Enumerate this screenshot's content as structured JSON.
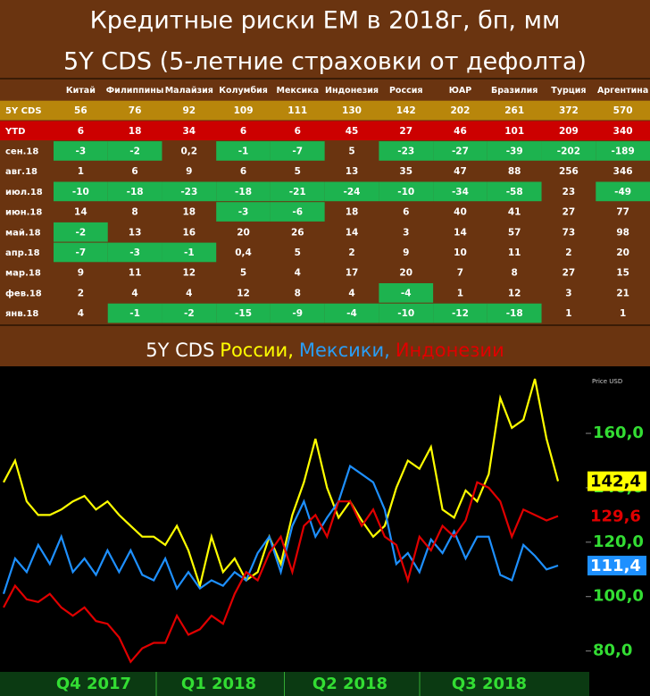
{
  "header": {
    "title": "Кредитные риски ЕМ в 2018г, бп, мм",
    "subtitle": "5Y CDS (5-летние страховки от дефолта)"
  },
  "table": {
    "columns": [
      "Китай",
      "Филиппины",
      "Малайзия",
      "Колумбия",
      "Мексика",
      "Индонезия",
      "Россия",
      "ЮАР",
      "Бразилия",
      "Турция",
      "Аргентина"
    ],
    "negative_color": "#1db34f",
    "rows": [
      {
        "label": "5Y CDS",
        "color": "#b8860b",
        "cells": [
          "56",
          "76",
          "92",
          "109",
          "111",
          "130",
          "142",
          "202",
          "261",
          "372",
          "570"
        ]
      },
      {
        "label": "YTD",
        "color": "#cc0000",
        "cells": [
          "6",
          "18",
          "34",
          "6",
          "6",
          "45",
          "27",
          "46",
          "101",
          "209",
          "340"
        ]
      },
      {
        "label": "сен.18",
        "cells": [
          "-3",
          "-2",
          "0,2",
          "-1",
          "-7",
          "5",
          "-23",
          "-27",
          "-39",
          "-202",
          "-189"
        ]
      },
      {
        "label": "авг.18",
        "cells": [
          "1",
          "6",
          "9",
          "6",
          "5",
          "13",
          "35",
          "47",
          "88",
          "256",
          "346"
        ]
      },
      {
        "label": "июл.18",
        "cells": [
          "-10",
          "-18",
          "-23",
          "-18",
          "-21",
          "-24",
          "-10",
          "-34",
          "-58",
          "23",
          "-49"
        ]
      },
      {
        "label": "июн.18",
        "cells": [
          "14",
          "8",
          "18",
          "-3",
          "-6",
          "18",
          "6",
          "40",
          "41",
          "27",
          "77"
        ]
      },
      {
        "label": "май.18",
        "cells": [
          "-2",
          "13",
          "16",
          "20",
          "26",
          "14",
          "3",
          "14",
          "57",
          "73",
          "98"
        ]
      },
      {
        "label": "апр.18",
        "cells": [
          "-7",
          "-3",
          "-1",
          "0,4",
          "5",
          "2",
          "9",
          "10",
          "11",
          "2",
          "20"
        ]
      },
      {
        "label": "мар.18",
        "cells": [
          "9",
          "11",
          "12",
          "5",
          "4",
          "17",
          "20",
          "7",
          "8",
          "27",
          "15"
        ]
      },
      {
        "label": "фев.18",
        "cells": [
          "2",
          "4",
          "4",
          "12",
          "8",
          "4",
          "-4",
          "1",
          "12",
          "3",
          "21"
        ]
      },
      {
        "label": "янв.18",
        "cells": [
          "4",
          "-1",
          "-2",
          "-15",
          "-9",
          "-4",
          "-10",
          "-12",
          "-18",
          "1",
          "1"
        ]
      }
    ]
  },
  "chart_data": {
    "type": "line",
    "title_parts": [
      {
        "text": "5Y CDS",
        "color": "#ffffff"
      },
      {
        "text": "России,",
        "color": "#ffff00"
      },
      {
        "text": "Мексики,",
        "color": "#2a9df4"
      },
      {
        "text": "Индонезии",
        "color": "#e00000"
      }
    ],
    "axis_label": "Price USD",
    "x_labels": [
      "Q4 2017",
      "Q1 2018",
      "Q2 2018",
      "Q3 2018"
    ],
    "ylim": [
      72,
      183
    ],
    "yticks": [
      {
        "value": 80,
        "label": "80,0"
      },
      {
        "value": 100,
        "label": "100,0"
      },
      {
        "value": 120,
        "label": "120,0"
      },
      {
        "value": 140,
        "label": "140,0"
      },
      {
        "value": 160,
        "label": "160,0"
      }
    ],
    "series": [
      {
        "name": "Россия",
        "color": "#ffff00",
        "end_label": "142,4",
        "values": [
          142,
          150,
          135,
          130,
          130,
          132,
          135,
          137,
          132,
          135,
          130,
          126,
          122,
          122,
          119,
          126,
          117,
          104,
          122,
          109,
          114,
          106,
          109,
          122,
          112,
          130,
          142,
          158,
          140,
          129,
          135,
          128,
          122,
          126,
          140,
          150,
          147,
          155,
          132,
          129,
          139,
          135,
          145,
          173,
          162,
          165,
          180,
          158,
          142.4
        ]
      },
      {
        "name": "Мексика",
        "color": "#1e90ff",
        "end_label": "111,4",
        "values": [
          101,
          114,
          109,
          119,
          112,
          122,
          109,
          114,
          108,
          117,
          109,
          117,
          108,
          106,
          114,
          103,
          109,
          103,
          106,
          104,
          109,
          106,
          116,
          122,
          109,
          126,
          135,
          122,
          129,
          135,
          148,
          145,
          142,
          132,
          112,
          116,
          109,
          121,
          116,
          124,
          114,
          122,
          122,
          108,
          106,
          119,
          115,
          110,
          111.4
        ]
      },
      {
        "name": "Индонезия",
        "color": "#e00000",
        "end_label": "129,6",
        "values": [
          96,
          104,
          99,
          98,
          101,
          96,
          93,
          96,
          91,
          90,
          85,
          76,
          81,
          83,
          83,
          93,
          86,
          88,
          93,
          90,
          101,
          109,
          106,
          116,
          122,
          109,
          126,
          130,
          122,
          135,
          135,
          126,
          132,
          122,
          119,
          106,
          122,
          117,
          126,
          122,
          128,
          142,
          140,
          135,
          122,
          132,
          130,
          128,
          129.6
        ]
      }
    ]
  }
}
